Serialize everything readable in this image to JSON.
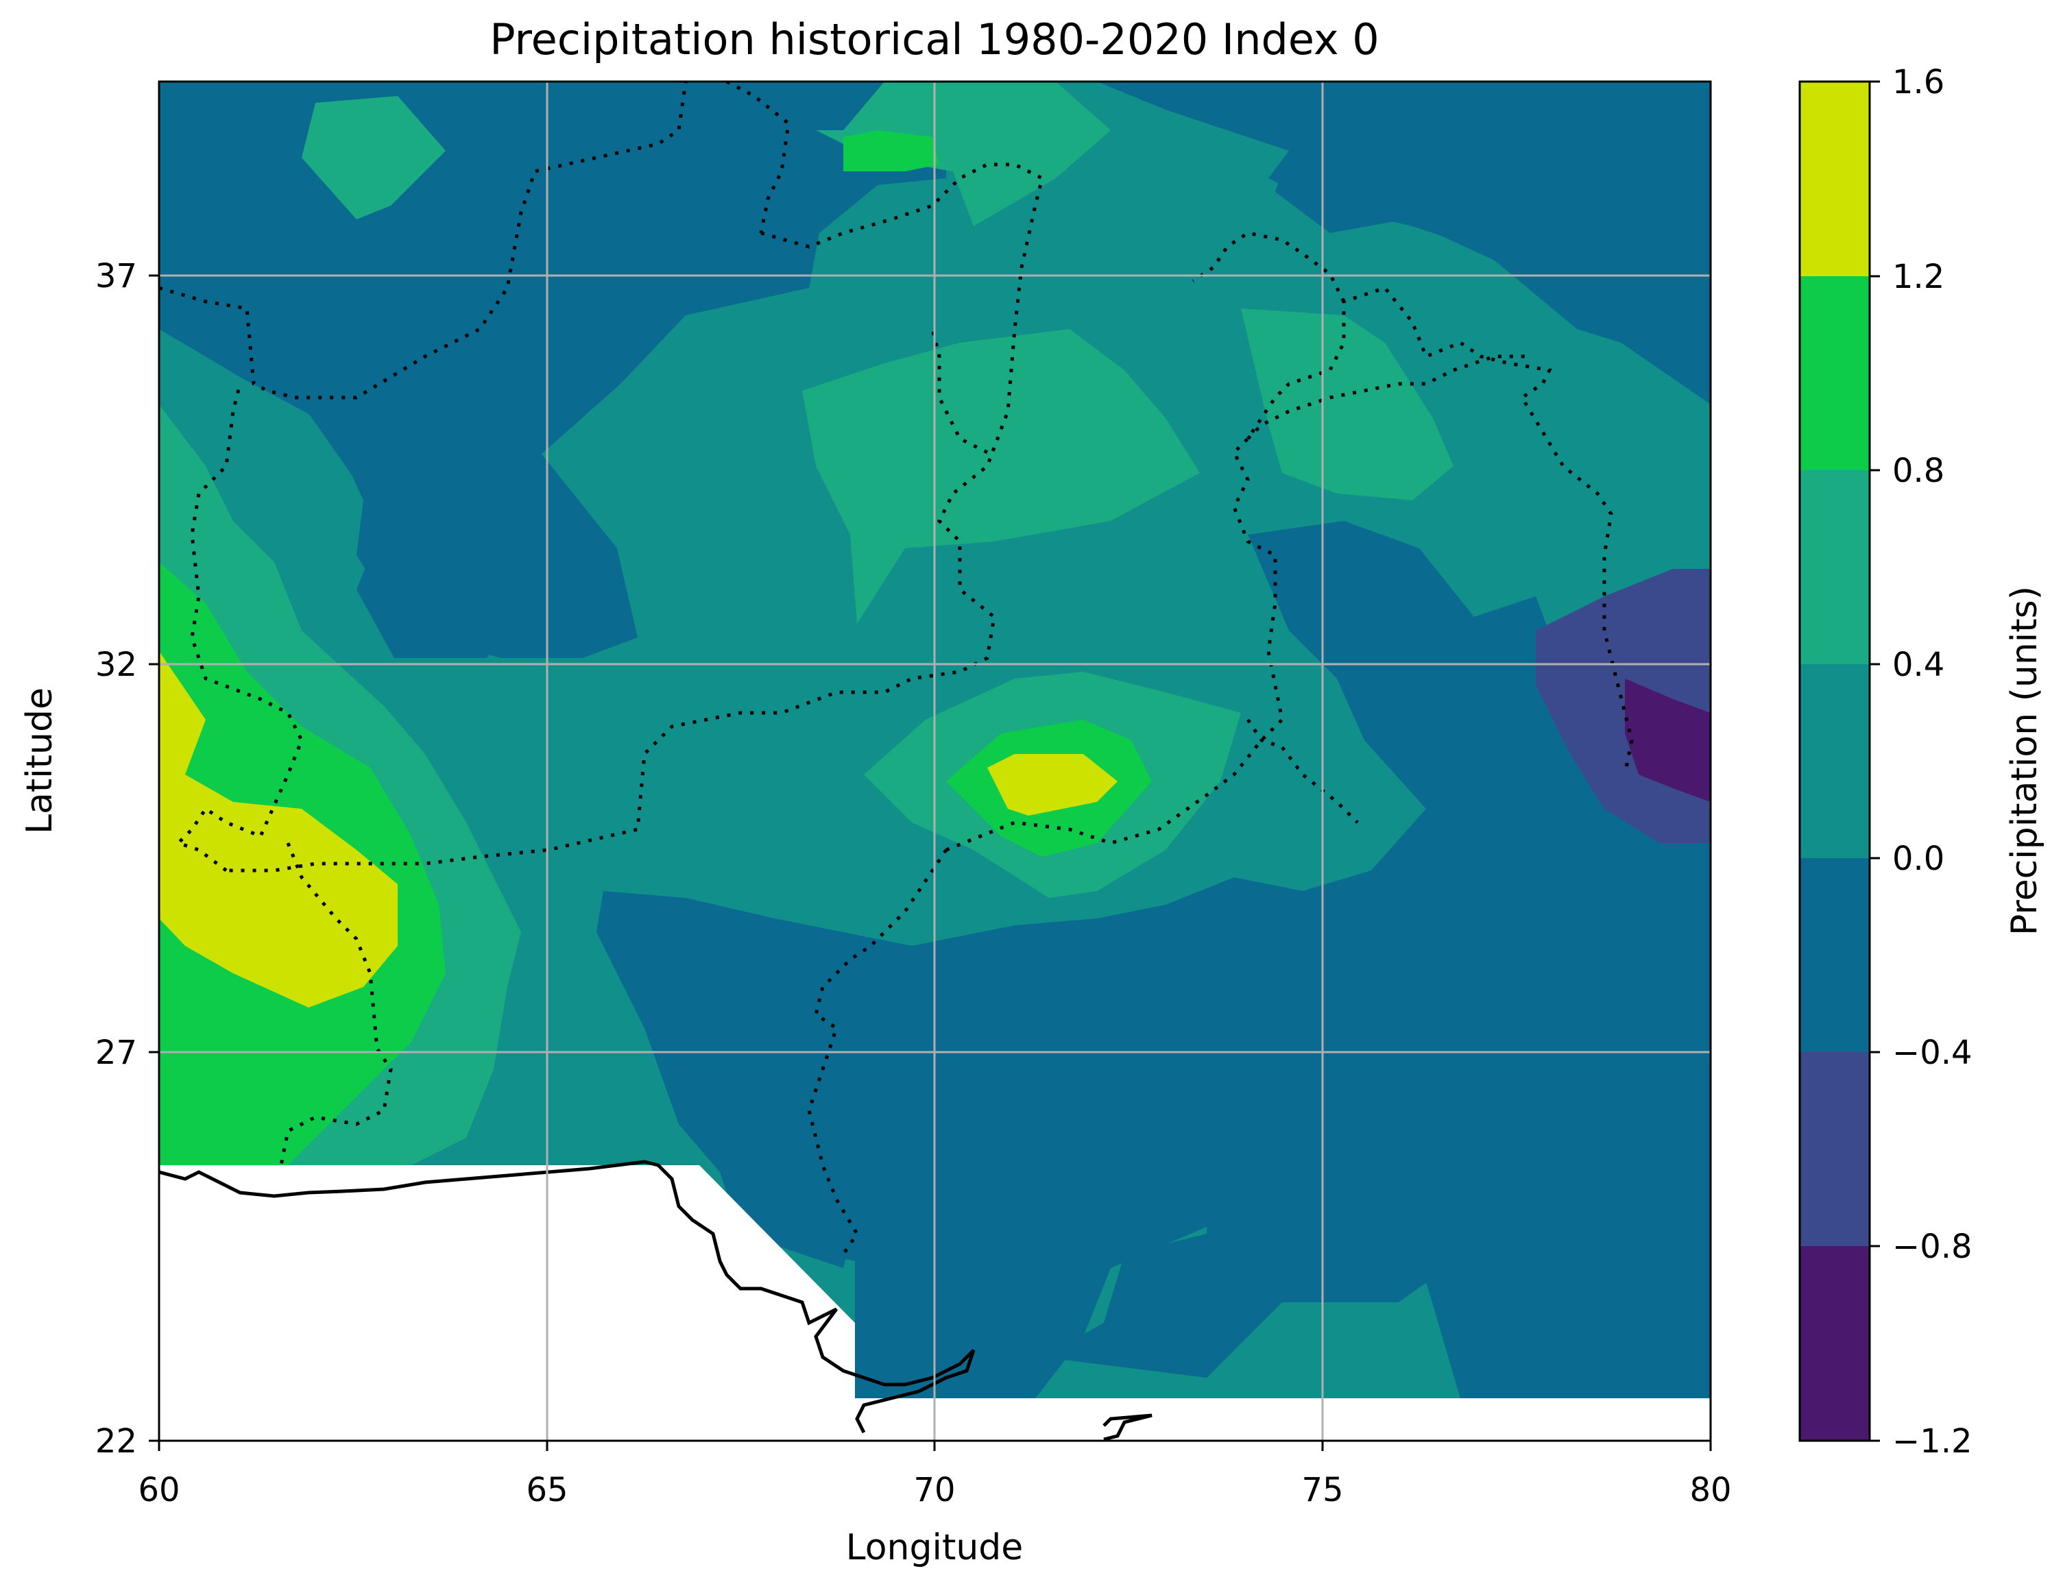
{
  "chart_data": {
    "type": "heatmap",
    "title": "Precipitation historical 1980-2020 Index 0",
    "xlabel": "Longitude",
    "ylabel": "Latitude",
    "xlim": [
      60,
      80
    ],
    "ylim": [
      22,
      39.5
    ],
    "x_ticks": [
      60,
      65,
      70,
      75,
      80
    ],
    "y_ticks": [
      22,
      27,
      32,
      37
    ],
    "grid": true,
    "colorbar": {
      "label": "Precipitation (units)",
      "levels": [
        -1.2,
        -0.8,
        -0.4,
        0.0,
        0.4,
        0.8,
        1.2,
        1.6
      ],
      "tick_labels": [
        "1.6",
        "1.2",
        "0.8",
        "0.4",
        "0.0",
        "−0.4",
        "−0.8",
        "−1.2"
      ],
      "colors": [
        "#4a186c",
        "#3b4a8c",
        "#0b6a8f",
        "#108f8b",
        "#1bab83",
        "#0ccc49",
        "#cde201"
      ]
    },
    "regions": [
      {
        "level": "0.8 to 1.2",
        "points": [
          [
            60,
            32.2
          ],
          [
            61.5,
            31
          ],
          [
            63,
            30
          ],
          [
            62,
            27.5
          ],
          [
            60,
            28.5
          ]
        ]
      },
      {
        "level": "0.8 to 1.2",
        "points": [
          [
            71.5,
            31.2
          ],
          [
            72.8,
            30.8
          ],
          [
            71.5,
            29.8
          ],
          [
            70.8,
            30.3
          ]
        ]
      },
      {
        "level": "0.4 to 0.8",
        "points": [
          [
            71.8,
            31.2
          ],
          [
            72.4,
            31
          ],
          [
            72.3,
            30.3
          ],
          [
            70.5,
            30.3
          ]
        ]
      },
      {
        "level": "-0.8 to -0.4",
        "points": [
          [
            78,
            32.5
          ],
          [
            80,
            33.3
          ],
          [
            80,
            29.7
          ],
          [
            78.5,
            30.3
          ]
        ]
      },
      {
        "level": "-1.2 to -0.8",
        "points": [
          [
            79.5,
            32
          ]
        ]
      }
    ]
  }
}
